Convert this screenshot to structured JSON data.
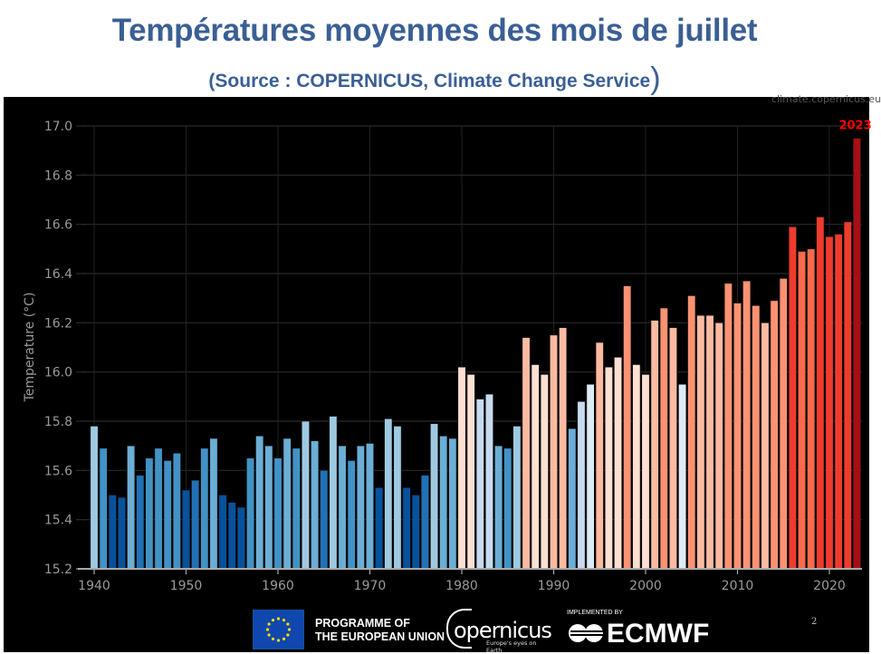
{
  "header": {
    "title": "Températures moyennes des mois de juillet",
    "subtitle": "(Source : COPERNICUS, Climate Change Service",
    "subtitle_close": ")"
  },
  "watermark": "climate.copernicus.eu",
  "footer": {
    "eu_line1": "PROGRAMME OF",
    "eu_line2": "THE EUROPEAN UNION",
    "copernicus_word": "opernicus",
    "copernicus_tagline": "Europe's eyes on Earth",
    "implemented_by": "IMPLEMENTED BY",
    "ecmwf": "ECMWF",
    "page_number": "2"
  },
  "chart_data": {
    "type": "bar",
    "title": "",
    "xlabel": "",
    "ylabel": "Temperature (°C)",
    "ylim": [
      15.2,
      17.0
    ],
    "yticks": [
      "15.2",
      "15.4",
      "15.6",
      "15.8",
      "16.0",
      "16.2",
      "16.4",
      "16.6",
      "16.8",
      "17.0"
    ],
    "xticks": [
      "1940",
      "1950",
      "1960",
      "1970",
      "1980",
      "1990",
      "2000",
      "2010",
      "2020"
    ],
    "xlim": [
      1939.6,
      2023.6
    ],
    "grid": true,
    "annotation": {
      "year": 2023,
      "label": "2023",
      "color": "#ff0000"
    },
    "color_scale": {
      "type": "diverging",
      "low": "#08519c",
      "mid": "#f7f7f7",
      "high": "#a50f15",
      "stops": [
        "#08519c",
        "#2171b5",
        "#4292c6",
        "#6baed6",
        "#9ecae1",
        "#c6dbef",
        "#deebf7",
        "#fee0d2",
        "#fcbba1",
        "#fc9272",
        "#fb6a4a",
        "#ef3b2c",
        "#cb181d",
        "#a50f15"
      ]
    },
    "years": [
      1940,
      1941,
      1942,
      1943,
      1944,
      1945,
      1946,
      1947,
      1948,
      1949,
      1950,
      1951,
      1952,
      1953,
      1954,
      1955,
      1956,
      1957,
      1958,
      1959,
      1960,
      1961,
      1962,
      1963,
      1964,
      1965,
      1966,
      1967,
      1968,
      1969,
      1970,
      1971,
      1972,
      1973,
      1974,
      1975,
      1976,
      1977,
      1978,
      1979,
      1980,
      1981,
      1982,
      1983,
      1984,
      1985,
      1986,
      1987,
      1988,
      1989,
      1990,
      1991,
      1992,
      1993,
      1994,
      1995,
      1996,
      1997,
      1998,
      1999,
      2000,
      2001,
      2002,
      2003,
      2004,
      2005,
      2006,
      2007,
      2008,
      2009,
      2010,
      2011,
      2012,
      2013,
      2014,
      2015,
      2016,
      2017,
      2018,
      2019,
      2020,
      2021,
      2022,
      2023
    ],
    "values": [
      15.78,
      15.69,
      15.5,
      15.49,
      15.7,
      15.58,
      15.65,
      15.69,
      15.64,
      15.67,
      15.52,
      15.56,
      15.69,
      15.73,
      15.5,
      15.47,
      15.45,
      15.65,
      15.74,
      15.7,
      15.65,
      15.73,
      15.69,
      15.8,
      15.72,
      15.6,
      15.82,
      15.7,
      15.64,
      15.7,
      15.71,
      15.53,
      15.81,
      15.78,
      15.53,
      15.5,
      15.58,
      15.79,
      15.74,
      15.73,
      16.02,
      15.99,
      15.89,
      15.91,
      15.7,
      15.69,
      15.78,
      16.14,
      16.03,
      15.99,
      16.15,
      16.18,
      15.77,
      15.88,
      15.95,
      16.12,
      16.02,
      16.06,
      16.35,
      16.03,
      15.99,
      16.21,
      16.26,
      16.18,
      15.95,
      16.31,
      16.23,
      16.23,
      16.2,
      16.36,
      16.28,
      16.37,
      16.27,
      16.2,
      16.29,
      16.38,
      16.59,
      16.49,
      16.5,
      16.63,
      16.55,
      16.56,
      16.61,
      16.95
    ]
  }
}
